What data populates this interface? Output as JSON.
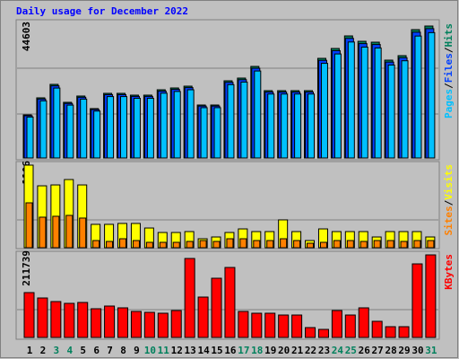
{
  "chart_data": [
    {
      "type": "bar",
      "title": "Daily usage for December 2022",
      "ylim": [
        0,
        44603
      ],
      "yticks": [
        44603
      ],
      "legend_separator": "/",
      "series": [
        {
          "name": "Hits",
          "color": "#00805c",
          "values": [
            14563,
            20328,
            24879,
            18811,
            20935,
            16687,
            21845,
            21845,
            21238,
            21238,
            23058,
            23665,
            24272,
            17901,
            17901,
            26092,
            27003,
            30947,
            22755,
            22755,
            22755,
            22755,
            33677,
            37015,
            41262,
            39442,
            39139,
            33071,
            34588,
            43386,
            44603
          ]
        },
        {
          "name": "Files",
          "color": "#0040ff",
          "values": [
            14272,
            19921,
            24381,
            18435,
            20516,
            16353,
            21408,
            21408,
            20813,
            20813,
            22597,
            23192,
            23787,
            17543,
            17543,
            25570,
            26463,
            30328,
            22300,
            22300,
            22300,
            22300,
            33003,
            36275,
            40437,
            38653,
            38356,
            32410,
            33896,
            42518,
            43711
          ]
        },
        {
          "name": "Pages",
          "color": "#00c0ff",
          "values": [
            13835,
            19312,
            23635,
            17870,
            19888,
            15853,
            20753,
            20753,
            20176,
            20176,
            21905,
            22482,
            23058,
            17006,
            17006,
            24787,
            25653,
            29400,
            21617,
            21617,
            21617,
            21617,
            31993,
            35164,
            39199,
            37470,
            37182,
            31417,
            32859,
            41217,
            42373
          ]
        }
      ]
    },
    {
      "type": "bar",
      "ylim": [
        0,
        1106
      ],
      "yticks": [
        1106
      ],
      "legend_separator": "/",
      "series": [
        {
          "name": "Visits",
          "color": "#ffff00",
          "values": [
            1106,
            829,
            841,
            913,
            841,
            313,
            313,
            325,
            325,
            264,
            204,
            204,
            216,
            120,
            144,
            204,
            252,
            216,
            216,
            373,
            216,
            96,
            252,
            216,
            216,
            216,
            144,
            216,
            216,
            216,
            144
          ]
        },
        {
          "name": "Sites",
          "color": "#ff8000",
          "values": [
            601,
            409,
            421,
            433,
            397,
            96,
            84,
            120,
            96,
            72,
            72,
            72,
            84,
            96,
            84,
            120,
            120,
            96,
            96,
            120,
            96,
            60,
            72,
            96,
            96,
            84,
            96,
            96,
            84,
            96,
            96
          ]
        }
      ]
    },
    {
      "type": "bar",
      "ylim": [
        0,
        211739
      ],
      "yticks": [
        211739
      ],
      "categories": [
        "1",
        "2",
        "3",
        "4",
        "5",
        "6",
        "7",
        "8",
        "9",
        "10",
        "11",
        "12",
        "13",
        "14",
        "15",
        "16",
        "17",
        "18",
        "19",
        "20",
        "21",
        "22",
        "23",
        "24",
        "25",
        "26",
        "27",
        "28",
        "29",
        "30",
        "31"
      ],
      "category_colors": [
        "#000000",
        "#000000",
        "#00805c",
        "#00805c",
        "#000000",
        "#000000",
        "#000000",
        "#000000",
        "#000000",
        "#00805c",
        "#00805c",
        "#000000",
        "#000000",
        "#000000",
        "#000000",
        "#000000",
        "#00805c",
        "#00805c",
        "#000000",
        "#000000",
        "#000000",
        "#000000",
        "#000000",
        "#00805c",
        "#00805c",
        "#000000",
        "#000000",
        "#000000",
        "#000000",
        "#000000",
        "#00805c"
      ],
      "series": [
        {
          "name": "KBytes",
          "color": "#ff0000",
          "values": [
            115060,
            101250,
            92050,
            87450,
            89750,
            73640,
            80540,
            75940,
            66740,
            64440,
            62130,
            69040,
            202520,
            103560,
            151880,
            179500,
            66740,
            62130,
            62130,
            57530,
            57530,
            25310,
            20710,
            69040,
            57530,
            75940,
            41420,
            27620,
            27620,
            188700,
            211739
          ]
        }
      ]
    }
  ]
}
